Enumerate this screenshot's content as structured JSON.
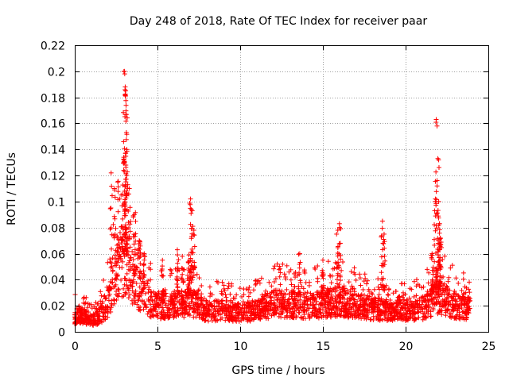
{
  "chart_data": {
    "type": "scatter",
    "title": "Day 248 of 2018, Rate Of TEC Index for receiver paar",
    "xlabel": "GPS time / hours",
    "ylabel": "ROTI / TECUs",
    "xlim": [
      0,
      25
    ],
    "ylim": [
      0,
      0.22
    ],
    "x_ticks": [
      0,
      5,
      10,
      15,
      20,
      25
    ],
    "x_tick_labels": [
      "0",
      "5",
      "10",
      "15",
      "20",
      "25"
    ],
    "y_ticks": [
      0,
      0.02,
      0.04,
      0.06,
      0.08,
      0.1,
      0.12,
      0.14,
      0.16,
      0.18,
      0.2,
      0.22
    ],
    "y_tick_labels": [
      "0",
      "0.02",
      "0.04",
      "0.06",
      "0.08",
      "0.1",
      "0.12",
      "0.14",
      "0.16",
      "0.18",
      "0.2",
      "0.22"
    ],
    "grid": true,
    "marker": "+",
    "series_color": "#ff0000",
    "baseline_anchors": [
      [
        0.0,
        0.013
      ],
      [
        0.5,
        0.014
      ],
      [
        1.0,
        0.01
      ],
      [
        1.5,
        0.013
      ],
      [
        2.0,
        0.025
      ],
      [
        2.5,
        0.05
      ],
      [
        3.0,
        0.06
      ],
      [
        3.5,
        0.045
      ],
      [
        4.0,
        0.035
      ],
      [
        4.5,
        0.025
      ],
      [
        5.0,
        0.022
      ],
      [
        6.0,
        0.022
      ],
      [
        7.0,
        0.025
      ],
      [
        8.0,
        0.018
      ],
      [
        9.0,
        0.018
      ],
      [
        10.0,
        0.016
      ],
      [
        11.0,
        0.018
      ],
      [
        12.0,
        0.024
      ],
      [
        13.0,
        0.024
      ],
      [
        14.0,
        0.022
      ],
      [
        15.0,
        0.024
      ],
      [
        16.0,
        0.026
      ],
      [
        17.0,
        0.022
      ],
      [
        18.0,
        0.02
      ],
      [
        19.0,
        0.018
      ],
      [
        20.0,
        0.018
      ],
      [
        21.0,
        0.02
      ],
      [
        22.0,
        0.03
      ],
      [
        23.0,
        0.022
      ],
      [
        23.9,
        0.02
      ]
    ],
    "spikes": [
      [
        2.2,
        0.122
      ],
      [
        2.4,
        0.11
      ],
      [
        2.6,
        0.115
      ],
      [
        2.8,
        0.105
      ],
      [
        2.95,
        0.146
      ],
      [
        3.0,
        0.2
      ],
      [
        3.02,
        0.198
      ],
      [
        3.05,
        0.188
      ],
      [
        3.08,
        0.185
      ],
      [
        3.1,
        0.167
      ],
      [
        3.12,
        0.153
      ],
      [
        3.15,
        0.14
      ],
      [
        3.3,
        0.11
      ],
      [
        3.6,
        0.09
      ],
      [
        3.9,
        0.07
      ],
      [
        4.2,
        0.06
      ],
      [
        5.3,
        0.055
      ],
      [
        6.2,
        0.063
      ],
      [
        6.5,
        0.058
      ],
      [
        6.9,
        0.059
      ],
      [
        7.0,
        0.102
      ],
      [
        7.05,
        0.094
      ],
      [
        7.1,
        0.093
      ],
      [
        7.2,
        0.078
      ],
      [
        13.6,
        0.06
      ],
      [
        15.0,
        0.055
      ],
      [
        15.9,
        0.078
      ],
      [
        16.0,
        0.083
      ],
      [
        18.6,
        0.085
      ],
      [
        18.7,
        0.075
      ],
      [
        21.6,
        0.06
      ],
      [
        21.8,
        0.102
      ],
      [
        21.85,
        0.163
      ],
      [
        21.9,
        0.158
      ],
      [
        21.95,
        0.133
      ],
      [
        22.0,
        0.1
      ],
      [
        22.05,
        0.083
      ],
      [
        22.1,
        0.072
      ]
    ]
  }
}
